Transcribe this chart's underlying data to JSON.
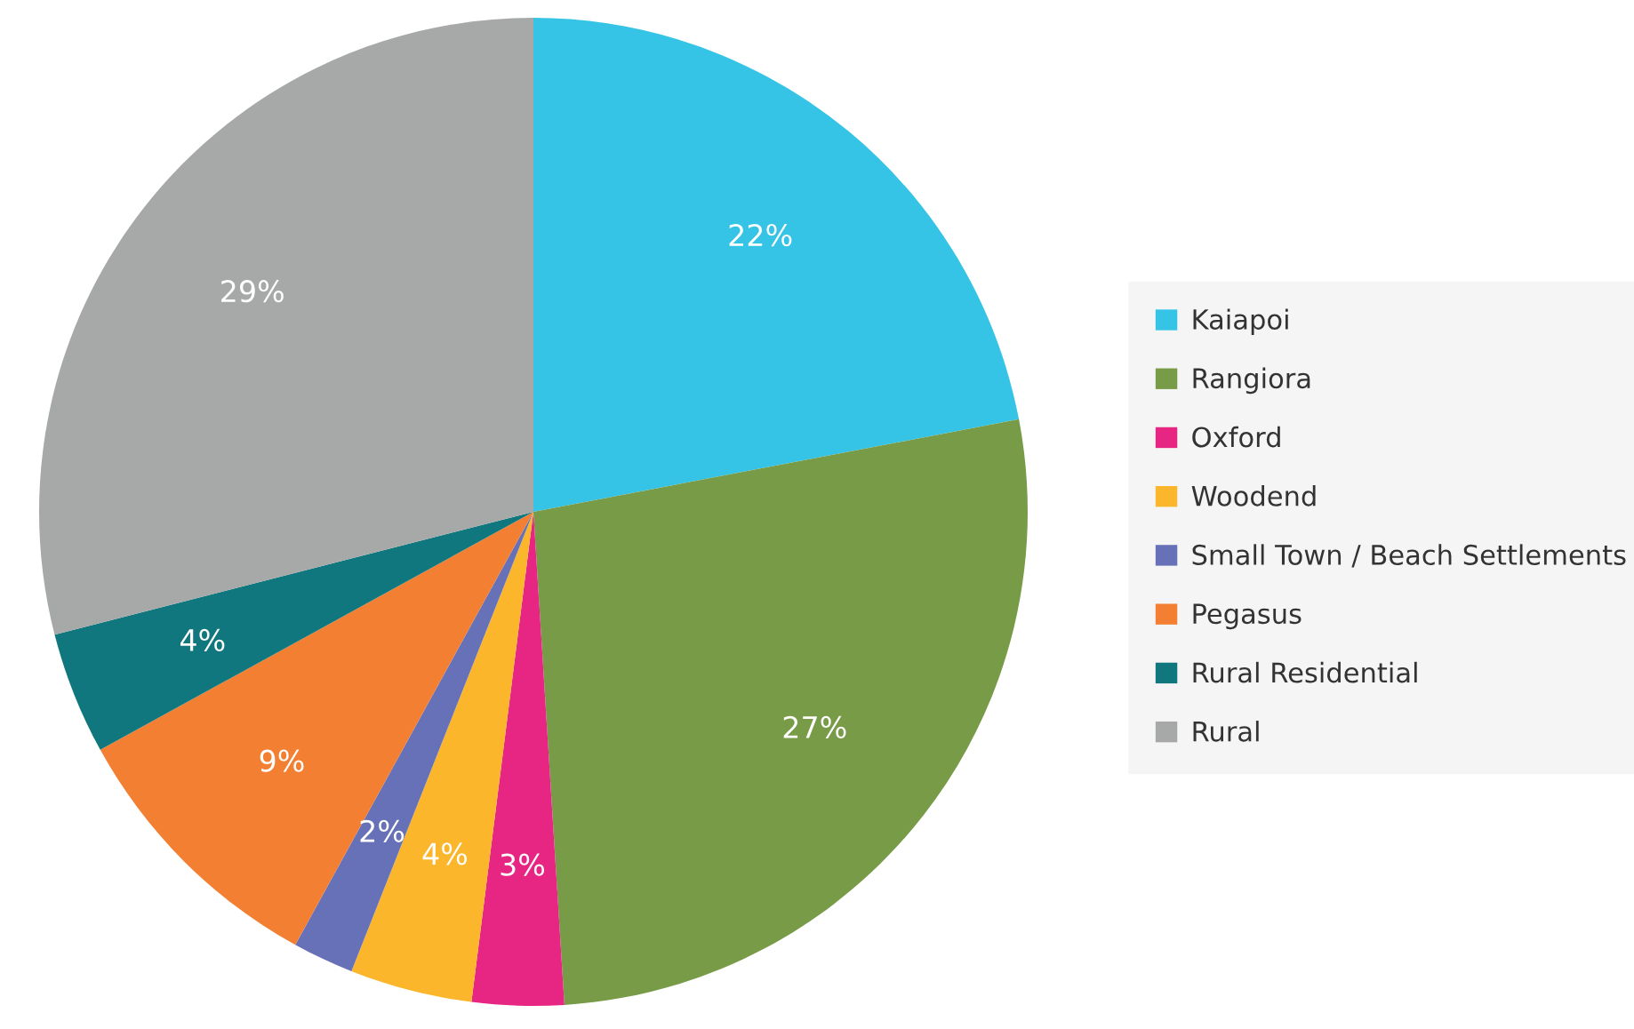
{
  "chart_data": {
    "type": "pie",
    "categories": [
      "Kaiapoi",
      "Rangiora",
      "Oxford",
      "Woodend",
      "Small Town / Beach Settlements",
      "Pegasus",
      "Rural Residential",
      "Rural"
    ],
    "values": [
      22,
      27,
      3,
      4,
      2,
      9,
      4,
      29
    ],
    "colors": [
      "#35c4e6",
      "#789b48",
      "#e72582",
      "#fbb62b",
      "#6771b8",
      "#f37f32",
      "#10777e",
      "#a7a8a8"
    ],
    "value_labels": [
      "22%",
      "27%",
      "3%",
      "4%",
      "2%",
      "9%",
      "4%",
      "29%"
    ],
    "legend": "right"
  }
}
